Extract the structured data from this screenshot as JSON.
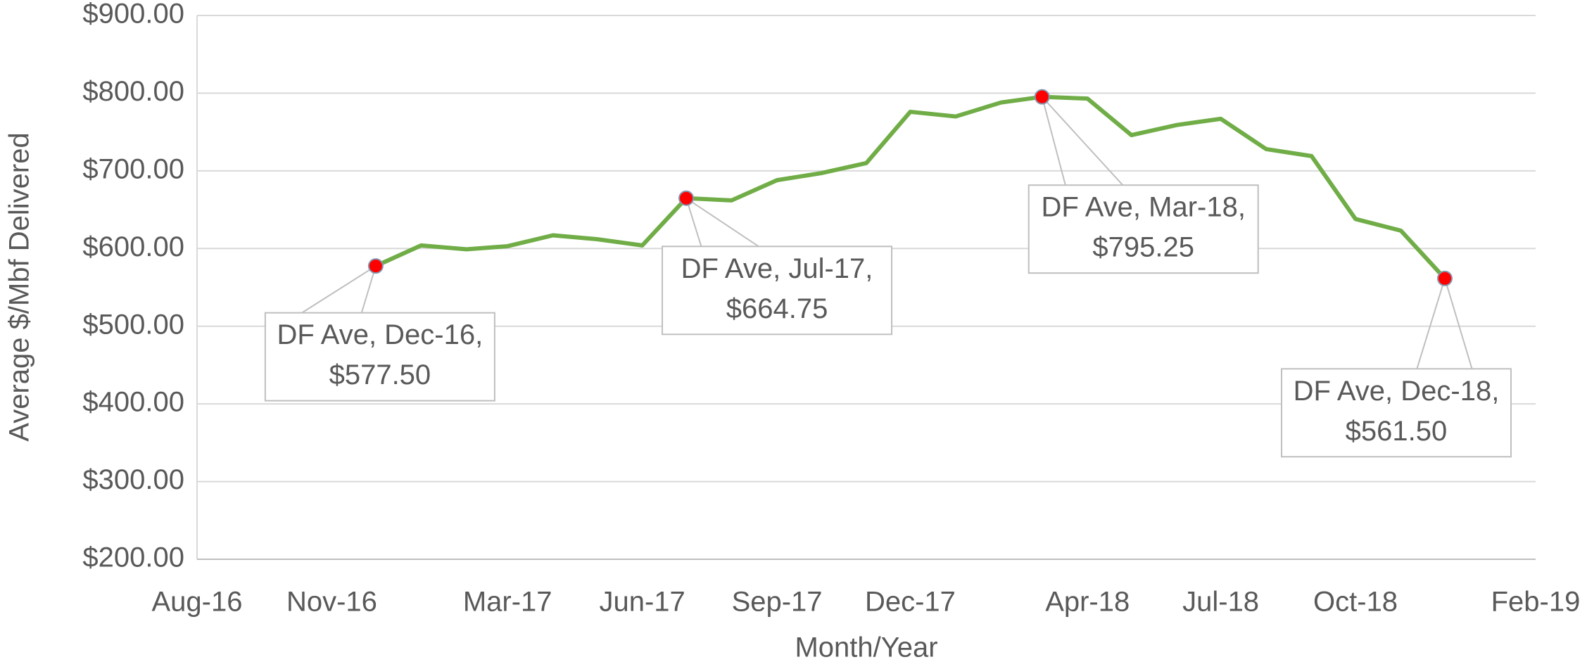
{
  "chart_data": {
    "type": "line",
    "x_label": "Month/Year",
    "y_label": "Average $/Mbf Delivered",
    "x": [
      "2016-12",
      "2017-01",
      "2017-02",
      "2017-03",
      "2017-04",
      "2017-05",
      "2017-06",
      "2017-07",
      "2017-08",
      "2017-09",
      "2017-10",
      "2017-11",
      "2017-12",
      "2018-01",
      "2018-02",
      "2018-03",
      "2018-04",
      "2018-05",
      "2018-06",
      "2018-07",
      "2018-08",
      "2018-09",
      "2018-10",
      "2018-11",
      "2018-12"
    ],
    "series": [
      {
        "name": "DF Ave",
        "color": "#70ad47",
        "values": [
          577.5,
          604,
          599,
          603,
          617,
          612,
          604,
          664.75,
          662,
          688,
          697,
          710,
          776,
          770,
          788,
          795.25,
          793,
          746,
          759,
          767,
          728,
          719,
          638,
          623,
          561.5
        ]
      }
    ],
    "xlim": [
      "2016-08",
      "2019-02"
    ],
    "xticks": [
      {
        "value": "2016-08",
        "label": "Aug-16"
      },
      {
        "value": "2016-11",
        "label": "Nov-16"
      },
      {
        "value": "2017-03",
        "label": "Mar-17"
      },
      {
        "value": "2017-06",
        "label": "Jun-17"
      },
      {
        "value": "2017-09",
        "label": "Sep-17"
      },
      {
        "value": "2017-12",
        "label": "Dec-17"
      },
      {
        "value": "2018-04",
        "label": "Apr-18"
      },
      {
        "value": "2018-07",
        "label": "Jul-18"
      },
      {
        "value": "2018-10",
        "label": "Oct-18"
      },
      {
        "value": "2019-02",
        "label": "Feb-19"
      }
    ],
    "ylim": [
      200,
      900
    ],
    "yticks": [
      {
        "value": 200,
        "label": "$200.00"
      },
      {
        "value": 300,
        "label": "$300.00"
      },
      {
        "value": 400,
        "label": "$400.00"
      },
      {
        "value": 500,
        "label": "$500.00"
      },
      {
        "value": 600,
        "label": "$600.00"
      },
      {
        "value": 700,
        "label": "$700.00"
      },
      {
        "value": 800,
        "label": "$800.00"
      },
      {
        "value": 900,
        "label": "$900.00"
      }
    ],
    "grid": true,
    "marker_color": "#ff0000",
    "annotations": [
      {
        "x": "2016-12",
        "lines": [
          "DF Ave, Dec-16,",
          "$577.50"
        ]
      },
      {
        "x": "2017-07",
        "lines": [
          "DF Ave, Jul-17,",
          "$664.75"
        ]
      },
      {
        "x": "2018-03",
        "lines": [
          "DF Ave, Mar-18,",
          "$795.25"
        ]
      },
      {
        "x": "2018-12",
        "lines": [
          "DF Ave, Dec-18,",
          "$561.50"
        ]
      }
    ]
  }
}
